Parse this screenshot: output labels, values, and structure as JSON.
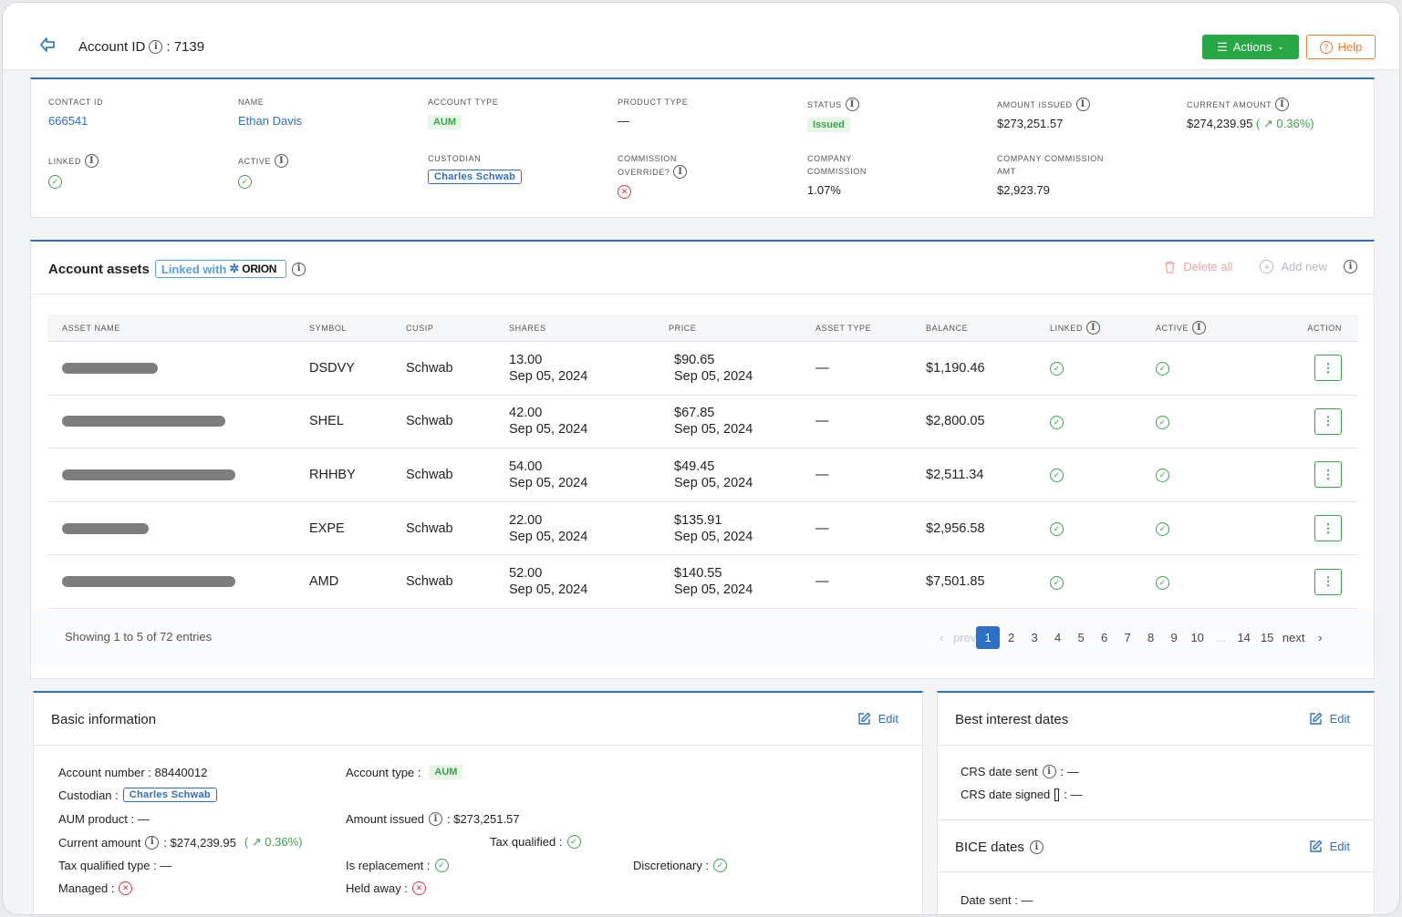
{
  "header": {
    "account_label": "Account ID",
    "account_id": ": 7139",
    "actions_label": "Actions",
    "help_label": "Help"
  },
  "summary": {
    "contact_id": {
      "label": "CONTACT ID",
      "value": "666541"
    },
    "name": {
      "label": "NAME",
      "value": "Ethan Davis"
    },
    "account_type": {
      "label": "ACCOUNT TYPE",
      "value": "AUM"
    },
    "product_type": {
      "label": "PRODUCT TYPE",
      "value": "—"
    },
    "status": {
      "label": "STATUS",
      "value": "Issued"
    },
    "amount_issued": {
      "label": "AMOUNT ISSUED",
      "value": "$273,251.57"
    },
    "current_amount": {
      "label": "CURRENT AMOUNT",
      "value": "$274,239.95",
      "change_open": "(",
      "change": "0.36%)"
    },
    "linked": {
      "label": "LINKED"
    },
    "active": {
      "label": "ACTIVE"
    },
    "custodian": {
      "label": "CUSTODIAN",
      "value": "Charles Schwab"
    },
    "commission_override": {
      "label_1": "COMMISSION",
      "label_2": "OVERRIDE?"
    },
    "company_commission": {
      "label_1": "COMPANY",
      "label_2": "COMMISSION",
      "value": "1.07%"
    },
    "company_commission_amt": {
      "label_1": "COMPANY COMMISSION",
      "label_2": "AMT",
      "value": "$2,923.79"
    }
  },
  "assets": {
    "title": "Account assets",
    "linked_with": "Linked with",
    "orion": "ORION",
    "delete_all": "Delete all",
    "add_new": "Add new",
    "columns": [
      "ASSET NAME",
      "SYMBOL",
      "CUSIP",
      "SHARES",
      "PRICE",
      "ASSET TYPE",
      "BALANCE",
      "LINKED",
      "ACTIVE",
      "ACTION"
    ],
    "rows": [
      {
        "symbol": "DSDVY",
        "cusip": "Schwab",
        "shares": "13.00",
        "shares_date": "Sep 05, 2024",
        "price": "$90.65",
        "price_date": "Sep 05, 2024",
        "asset_type": "—",
        "balance": "$1,190.46",
        "redact_width": 0.55
      },
      {
        "symbol": "SHEL",
        "cusip": "Schwab",
        "shares": "42.00",
        "shares_date": "Sep 05, 2024",
        "price": "$67.85",
        "price_date": "Sep 05, 2024",
        "asset_type": "—",
        "balance": "$2,800.05",
        "redact_width": 0.94
      },
      {
        "symbol": "RHHBY",
        "cusip": "Schwab",
        "shares": "54.00",
        "shares_date": "Sep 05, 2024",
        "price": "$49.45",
        "price_date": "Sep 05, 2024",
        "asset_type": "—",
        "balance": "$2,511.34",
        "redact_width": 1.0
      },
      {
        "symbol": "EXPE",
        "cusip": "Schwab",
        "shares": "22.00",
        "shares_date": "Sep 05, 2024",
        "price": "$135.91",
        "price_date": "Sep 05, 2024",
        "asset_type": "—",
        "balance": "$2,956.58",
        "redact_width": 0.5
      },
      {
        "symbol": "AMD",
        "cusip": "Schwab",
        "shares": "52.00",
        "shares_date": "Sep 05, 2024",
        "price": "$140.55",
        "price_date": "Sep 05, 2024",
        "asset_type": "—",
        "balance": "$7,501.85",
        "redact_width": 1.0
      }
    ],
    "showing": "Showing 1 to 5 of 72 entries",
    "pagination": {
      "prev": "prev",
      "pages": [
        "1",
        "2",
        "3",
        "4",
        "5",
        "6",
        "7",
        "8",
        "9",
        "10",
        "...",
        "14",
        "15"
      ],
      "next": "next",
      "current": "1"
    }
  },
  "basic_info": {
    "title": "Basic information",
    "edit": "Edit",
    "account_number": "Account number : 88440012",
    "account_type_label": "Account type :",
    "account_type_value": "AUM",
    "custodian_label": "Custodian :",
    "custodian_value": "Charles Schwab",
    "aum_product": "AUM product : —",
    "amount_issued_label": "Amount issued",
    "amount_issued_value": ": $273,251.57",
    "current_amount_label": "Current amount",
    "current_amount_value": ": $274,239.95",
    "current_amount_change": "( ↗ 0.36%)",
    "tax_qualified": "Tax qualified :",
    "tax_qualified_type": "Tax qualified type : —",
    "is_replacement": "Is replacement :",
    "discretionary": "Discretionary :",
    "managed": "Managed :",
    "held_away": "Held away :"
  },
  "best_interest": {
    "title": "Best interest dates",
    "edit": "Edit",
    "crs_sent_label": "CRS date sent",
    "crs_sent_value": ": —",
    "crs_signed_label": "CRS date signed",
    "crs_signed_value": ": —"
  },
  "bice": {
    "title": "BICE dates",
    "edit": "Edit",
    "date_sent": "Date sent : —"
  },
  "colors": {
    "primary": "#2d6fc4",
    "success": "#28a745",
    "warning": "#f57c28",
    "danger": "#d9363e"
  }
}
